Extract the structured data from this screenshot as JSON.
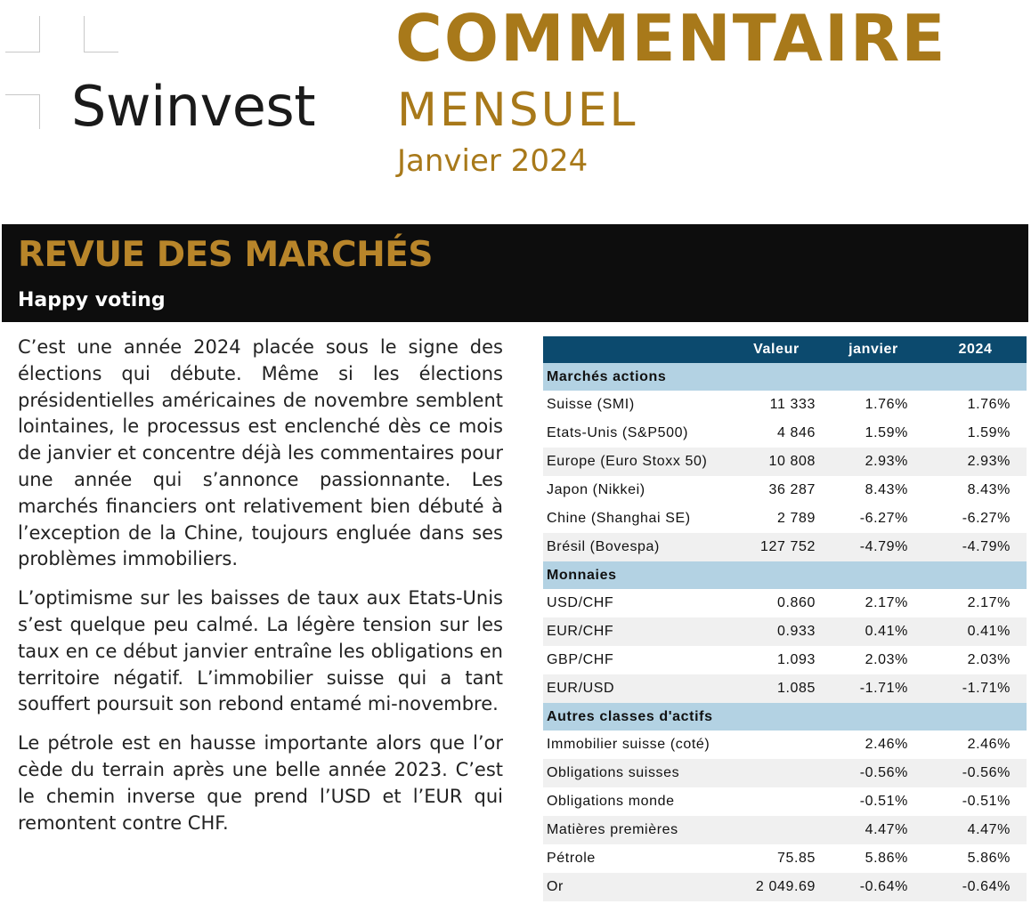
{
  "header": {
    "logo_text": "Swinvest",
    "title": "COMMENTAIRE",
    "subtitle": "MENSUEL",
    "period": "Janvier 2024",
    "accent_color": "#a8791a"
  },
  "section": {
    "title": "REVUE DES MARCHÉS",
    "subtitle": "Happy voting"
  },
  "body": {
    "paragraphs": [
      "C’est une année 2024 placée sous le signe des élections qui débute. Même si les élections présidentielles américaines de novembre semblent lointaines, le processus est enclenché dès ce mois de janvier et concentre déjà les commentaires pour une année qui s’annonce passionnante. Les marchés financiers ont relativement bien débuté à l’exception de la Chine, toujours engluée dans ses problèmes immobiliers.",
      "L’optimisme sur les baisses de taux aux Etats-Unis s’est quelque peu calmé. La légère tension sur les taux en ce début janvier entraîne les obligations en territoire négatif. L’immobilier suisse qui a tant souffert poursuit son rebond entamé mi-novembre.",
      "Le pétrole est en hausse importante alors que l’or cède du terrain après une belle année 2023. C’est le chemin inverse que prend l’USD et l’EUR qui remontent contre CHF."
    ]
  },
  "table": {
    "header_color": "#0c4a6e",
    "section_color": "#b3d2e3",
    "columns": [
      "",
      "Valeur",
      "janvier",
      "2024"
    ],
    "sections": [
      {
        "title": "Marchés actions",
        "rows": [
          {
            "name": "Suisse (SMI)",
            "value": "11 333",
            "month": "1.76%",
            "ytd": "1.76%"
          },
          {
            "name": "Etats-Unis (S&P500)",
            "value": "4 846",
            "month": "1.59%",
            "ytd": "1.59%"
          },
          {
            "name": "Europe (Euro Stoxx 50)",
            "value": "10 808",
            "month": "2.93%",
            "ytd": "2.93%"
          },
          {
            "name": "Japon (Nikkei)",
            "value": "36 287",
            "month": "8.43%",
            "ytd": "8.43%"
          },
          {
            "name": "Chine (Shanghai SE)",
            "value": "2 789",
            "month": "-6.27%",
            "ytd": "-6.27%"
          },
          {
            "name": "Brésil (Bovespa)",
            "value": "127 752",
            "month": "-4.79%",
            "ytd": "-4.79%"
          }
        ]
      },
      {
        "title": "Monnaies",
        "rows": [
          {
            "name": "USD/CHF",
            "value": "0.860",
            "month": "2.17%",
            "ytd": "2.17%"
          },
          {
            "name": "EUR/CHF",
            "value": "0.933",
            "month": "0.41%",
            "ytd": "0.41%"
          },
          {
            "name": "GBP/CHF",
            "value": "1.093",
            "month": "2.03%",
            "ytd": "2.03%"
          },
          {
            "name": "EUR/USD",
            "value": "1.085",
            "month": "-1.71%",
            "ytd": "-1.71%"
          }
        ]
      },
      {
        "title": "Autres classes d'actifs",
        "rows": [
          {
            "name": "Immobilier suisse (coté)",
            "value": "",
            "month": "2.46%",
            "ytd": "2.46%"
          },
          {
            "name": "Obligations suisses",
            "value": "",
            "month": "-0.56%",
            "ytd": "-0.56%"
          },
          {
            "name": "Obligations monde",
            "value": "",
            "month": "-0.51%",
            "ytd": "-0.51%"
          },
          {
            "name": "Matières premières",
            "value": "",
            "month": "4.47%",
            "ytd": "4.47%"
          },
          {
            "name": "Pétrole",
            "value": "75.85",
            "month": "5.86%",
            "ytd": "5.86%"
          },
          {
            "name": "Or",
            "value": "2 049.69",
            "month": "-0.64%",
            "ytd": "-0.64%"
          }
        ]
      }
    ]
  }
}
